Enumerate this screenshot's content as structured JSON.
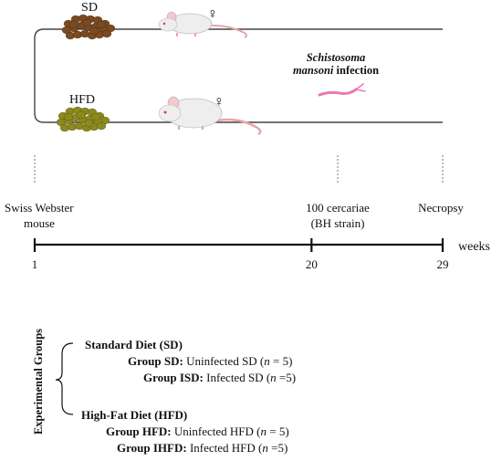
{
  "diagram": {
    "diet_sd_label": "SD",
    "diet_hfd_label": "HFD",
    "female_symbol": "♀",
    "infection_species": "Schistosoma",
    "infection_species2": "mansoni",
    "infection_suffix": "infection",
    "colors": {
      "line": "#444444",
      "sd_pellets": "#7a4a22",
      "hfd_pellets": "#8c8a1e",
      "mouse_body": "#eeeeee",
      "mouse_tail": "#e8a3a8",
      "worm": "#e879b8"
    }
  },
  "timeline": {
    "start_label_line1": "Swiss Webster",
    "start_label_line2": "mouse",
    "cercariae_line1": "100 cercariae",
    "cercariae_line2": "(BH strain)",
    "necropsy_label": "Necropsy",
    "unit_label": "weeks",
    "ticks": [
      {
        "label": "1",
        "week": 1
      },
      {
        "label": "20",
        "week": 20
      },
      {
        "label": "29",
        "week": 29
      }
    ]
  },
  "groups": {
    "title": "Experimental Groups",
    "sd_heading": "Standard Diet (SD)",
    "hfd_heading": "High-Fat Diet (HFD)",
    "sd_group_name": "Group SD:",
    "sd_group_desc": " Uninfected SD (",
    "isd_group_name": "Group ISD:",
    "isd_group_desc": "  Infected SD (",
    "hfd_group_name": "Group HFD:",
    "hfd_group_desc": " Uninfected HFD (",
    "ihfd_group_name": "Group IHFD:",
    "ihfd_group_desc": "  Infected HFD (",
    "n_symbol": "n",
    "n_sd": " = 5)",
    "n_isd": " =5)",
    "n_hfd": " = 5)",
    "n_ihfd": " =5)"
  }
}
